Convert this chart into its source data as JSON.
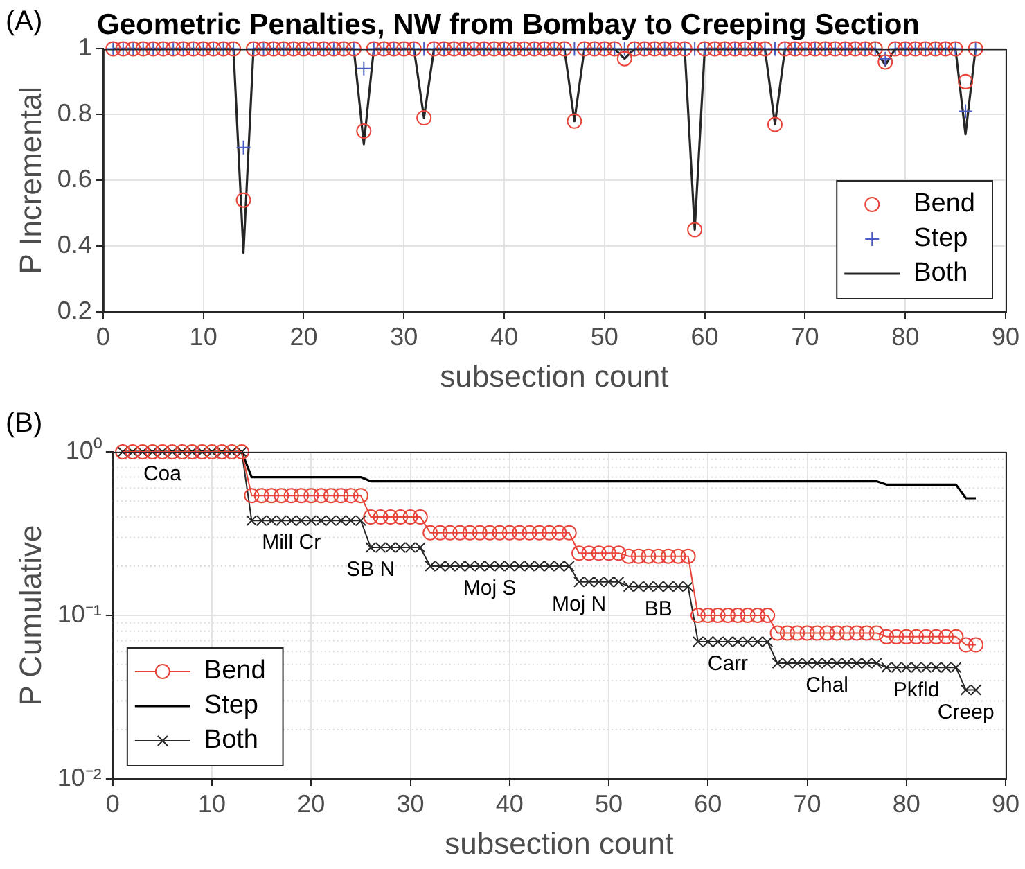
{
  "chart_data": [
    {
      "type": "line",
      "title": "Geometric Penalties, NW from Bombay to Creeping Section",
      "xlabel": "subsection count",
      "ylabel": "P Incremental",
      "annotations": [
        "(A)"
      ],
      "x": [
        1,
        2,
        3,
        4,
        5,
        6,
        7,
        8,
        9,
        10,
        11,
        12,
        13,
        14,
        15,
        16,
        17,
        18,
        19,
        20,
        21,
        22,
        23,
        24,
        25,
        26,
        27,
        28,
        29,
        30,
        31,
        32,
        33,
        34,
        35,
        36,
        37,
        38,
        39,
        40,
        41,
        42,
        43,
        44,
        45,
        46,
        47,
        48,
        49,
        50,
        51,
        52,
        53,
        54,
        55,
        56,
        57,
        58,
        59,
        60,
        61,
        62,
        63,
        64,
        65,
        66,
        67,
        68,
        69,
        70,
        71,
        72,
        73,
        74,
        75,
        76,
        77,
        78,
        79,
        80,
        81,
        82,
        83,
        84,
        85,
        86,
        87
      ],
      "series": [
        {
          "name": "Bend",
          "type": "scatter",
          "marker": "circle",
          "color": "#e8443a",
          "values": [
            1,
            1,
            1,
            1,
            1,
            1,
            1,
            1,
            1,
            1,
            1,
            1,
            1,
            0.54,
            1,
            1,
            1,
            1,
            1,
            1,
            1,
            1,
            1,
            1,
            1,
            0.75,
            1,
            1,
            1,
            1,
            1,
            0.79,
            1,
            1,
            1,
            1,
            1,
            1,
            1,
            1,
            1,
            1,
            1,
            1,
            1,
            1,
            0.78,
            1,
            1,
            1,
            1,
            0.97,
            1,
            1,
            1,
            1,
            1,
            1,
            0.45,
            1,
            1,
            1,
            1,
            1,
            1,
            1,
            0.77,
            1,
            1,
            1,
            1,
            1,
            1,
            1,
            1,
            1,
            1,
            0.96,
            1,
            1,
            1,
            1,
            1,
            1,
            1,
            0.9,
            1
          ]
        },
        {
          "name": "Step",
          "type": "scatter",
          "marker": "cross",
          "color": "#4a5cc4",
          "values": [
            1,
            1,
            1,
            1,
            1,
            1,
            1,
            1,
            1,
            1,
            1,
            1,
            1,
            0.7,
            1,
            1,
            1,
            1,
            1,
            1,
            1,
            1,
            1,
            1,
            1,
            0.94,
            1,
            1,
            1,
            1,
            1,
            1,
            1,
            1,
            1,
            1,
            1,
            1,
            1,
            1,
            1,
            1,
            1,
            1,
            1,
            1,
            1,
            1,
            1,
            1,
            1,
            1,
            1,
            1,
            1,
            1,
            1,
            1,
            1,
            1,
            1,
            1,
            1,
            1,
            1,
            1,
            1,
            1,
            1,
            1,
            1,
            1,
            1,
            1,
            1,
            1,
            1,
            0.97,
            1,
            1,
            1,
            1,
            1,
            1,
            1,
            0.81,
            1
          ]
        },
        {
          "name": "Both",
          "type": "line",
          "marker": "none",
          "color": "#262626",
          "values": [
            1,
            1,
            1,
            1,
            1,
            1,
            1,
            1,
            1,
            1,
            1,
            1,
            1,
            0.38,
            1,
            1,
            1,
            1,
            1,
            1,
            1,
            1,
            1,
            1,
            1,
            0.71,
            1,
            1,
            1,
            1,
            1,
            0.79,
            1,
            1,
            1,
            1,
            1,
            1,
            1,
            1,
            1,
            1,
            1,
            1,
            1,
            1,
            0.78,
            1,
            1,
            1,
            1,
            0.97,
            1,
            1,
            1,
            1,
            1,
            1,
            0.45,
            1,
            1,
            1,
            1,
            1,
            1,
            1,
            0.77,
            1,
            1,
            1,
            1,
            1,
            1,
            1,
            1,
            1,
            1,
            0.95,
            1,
            1,
            1,
            1,
            1,
            1,
            1,
            0.74,
            1
          ]
        }
      ],
      "xlim": [
        0,
        90
      ],
      "xticks": [
        0,
        10,
        20,
        30,
        40,
        50,
        60,
        70,
        80,
        90
      ],
      "ylim": [
        0.2,
        1
      ],
      "yticks": [
        0.2,
        0.4,
        0.6,
        0.8,
        1
      ],
      "grid": true,
      "legend": "bottom right"
    },
    {
      "type": "line",
      "xlabel": "subsection count",
      "ylabel": "P Cumulative",
      "log": "y",
      "annotations": [
        "(B)",
        {
          "text": "Coa",
          "x": 5,
          "y": 1
        },
        {
          "text": "Mill Cr",
          "x": 18,
          "y": 0.38
        },
        {
          "text": "SB N",
          "x": 26,
          "y": 0.26
        },
        {
          "text": "Moj S",
          "x": 38,
          "y": 0.2
        },
        {
          "text": "Moj N",
          "x": 47,
          "y": 0.16
        },
        {
          "text": "BB",
          "x": 55,
          "y": 0.15
        },
        {
          "text": "Carr",
          "x": 62,
          "y": 0.069
        },
        {
          "text": "Chal",
          "x": 72,
          "y": 0.051
        },
        {
          "text": "Pkfld",
          "x": 81,
          "y": 0.048
        },
        {
          "text": "Creep",
          "x": 86,
          "y": 0.035
        }
      ],
      "x": [
        1,
        2,
        3,
        4,
        5,
        6,
        7,
        8,
        9,
        10,
        11,
        12,
        13,
        14,
        15,
        16,
        17,
        18,
        19,
        20,
        21,
        22,
        23,
        24,
        25,
        26,
        27,
        28,
        29,
        30,
        31,
        32,
        33,
        34,
        35,
        36,
        37,
        38,
        39,
        40,
        41,
        42,
        43,
        44,
        45,
        46,
        47,
        48,
        49,
        50,
        51,
        52,
        53,
        54,
        55,
        56,
        57,
        58,
        59,
        60,
        61,
        62,
        63,
        64,
        65,
        66,
        67,
        68,
        69,
        70,
        71,
        72,
        73,
        74,
        75,
        76,
        77,
        78,
        79,
        80,
        81,
        82,
        83,
        84,
        85,
        86,
        87
      ],
      "series": [
        {
          "name": "Bend",
          "marker": "circle",
          "color": "#e8443a",
          "values": [
            1,
            1,
            1,
            1,
            1,
            1,
            1,
            1,
            1,
            1,
            1,
            1,
            1,
            0.54,
            0.54,
            0.54,
            0.54,
            0.54,
            0.54,
            0.54,
            0.54,
            0.54,
            0.54,
            0.54,
            0.54,
            0.4,
            0.4,
            0.4,
            0.4,
            0.4,
            0.4,
            0.32,
            0.32,
            0.32,
            0.32,
            0.32,
            0.32,
            0.32,
            0.32,
            0.32,
            0.32,
            0.32,
            0.32,
            0.32,
            0.32,
            0.32,
            0.24,
            0.24,
            0.24,
            0.24,
            0.24,
            0.23,
            0.23,
            0.23,
            0.23,
            0.23,
            0.23,
            0.23,
            0.1,
            0.1,
            0.1,
            0.1,
            0.1,
            0.1,
            0.1,
            0.1,
            0.078,
            0.078,
            0.078,
            0.078,
            0.078,
            0.078,
            0.078,
            0.078,
            0.078,
            0.078,
            0.078,
            0.074,
            0.074,
            0.074,
            0.074,
            0.074,
            0.074,
            0.074,
            0.074,
            0.066,
            0.066
          ]
        },
        {
          "name": "Step",
          "marker": "none",
          "color": "#000000",
          "values": [
            1,
            1,
            1,
            1,
            1,
            1,
            1,
            1,
            1,
            1,
            1,
            1,
            1,
            0.7,
            0.7,
            0.7,
            0.7,
            0.7,
            0.7,
            0.7,
            0.7,
            0.7,
            0.7,
            0.7,
            0.7,
            0.66,
            0.66,
            0.66,
            0.66,
            0.66,
            0.66,
            0.66,
            0.66,
            0.66,
            0.66,
            0.66,
            0.66,
            0.66,
            0.66,
            0.66,
            0.66,
            0.66,
            0.66,
            0.66,
            0.66,
            0.66,
            0.66,
            0.66,
            0.66,
            0.66,
            0.66,
            0.66,
            0.66,
            0.66,
            0.66,
            0.66,
            0.66,
            0.66,
            0.66,
            0.66,
            0.66,
            0.66,
            0.66,
            0.66,
            0.66,
            0.66,
            0.66,
            0.66,
            0.66,
            0.66,
            0.66,
            0.66,
            0.66,
            0.66,
            0.66,
            0.66,
            0.66,
            0.63,
            0.63,
            0.63,
            0.63,
            0.63,
            0.63,
            0.63,
            0.63,
            0.52,
            0.52
          ]
        },
        {
          "name": "Both",
          "marker": "cross",
          "color": "#262626",
          "values": [
            1,
            1,
            1,
            1,
            1,
            1,
            1,
            1,
            1,
            1,
            1,
            1,
            1,
            0.38,
            0.38,
            0.38,
            0.38,
            0.38,
            0.38,
            0.38,
            0.38,
            0.38,
            0.38,
            0.38,
            0.38,
            0.26,
            0.26,
            0.26,
            0.26,
            0.26,
            0.26,
            0.2,
            0.2,
            0.2,
            0.2,
            0.2,
            0.2,
            0.2,
            0.2,
            0.2,
            0.2,
            0.2,
            0.2,
            0.2,
            0.2,
            0.2,
            0.16,
            0.16,
            0.16,
            0.16,
            0.16,
            0.15,
            0.15,
            0.15,
            0.15,
            0.15,
            0.15,
            0.15,
            0.069,
            0.069,
            0.069,
            0.069,
            0.069,
            0.069,
            0.069,
            0.069,
            0.051,
            0.051,
            0.051,
            0.051,
            0.051,
            0.051,
            0.051,
            0.051,
            0.051,
            0.051,
            0.051,
            0.048,
            0.048,
            0.048,
            0.048,
            0.048,
            0.048,
            0.048,
            0.048,
            0.035,
            0.035
          ]
        }
      ],
      "xlim": [
        0,
        90
      ],
      "xticks": [
        0,
        10,
        20,
        30,
        40,
        50,
        60,
        70,
        80,
        90
      ],
      "ylim": [
        0.01,
        1
      ],
      "yticks": [
        {
          "value": 0.01,
          "label": "10⁻²"
        },
        {
          "value": 0.1,
          "label": "10⁻¹"
        },
        {
          "value": 1,
          "label": "10⁰"
        }
      ],
      "grid": true,
      "legend": "bottom left"
    }
  ]
}
